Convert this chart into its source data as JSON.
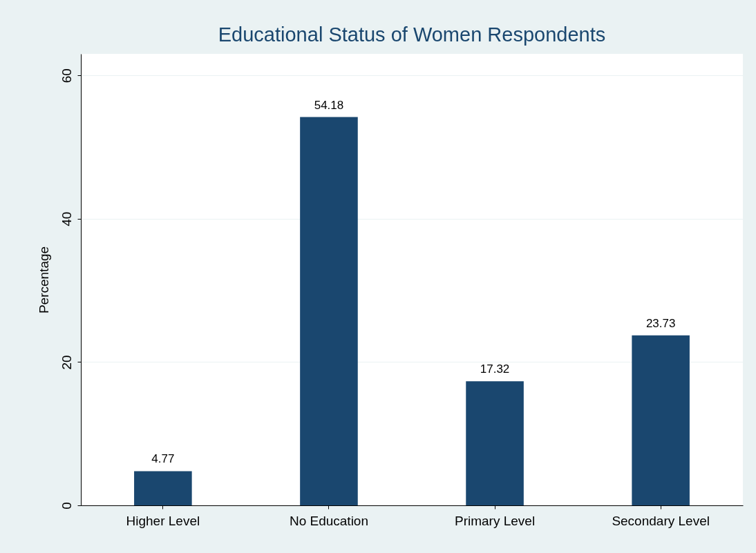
{
  "chart_data": {
    "type": "bar",
    "title": "Educational Status of Women Respondents",
    "ylabel": "Percentage",
    "categories": [
      "Higher Level",
      "No Education",
      "Primary Level",
      "Secondary Level"
    ],
    "values": [
      4.77,
      54.18,
      17.32,
      23.73
    ],
    "color": "#1a476f",
    "data_labels": true,
    "ylim": [
      0,
      63
    ],
    "yticks": [
      0,
      20,
      40,
      60
    ],
    "grid": "y"
  }
}
